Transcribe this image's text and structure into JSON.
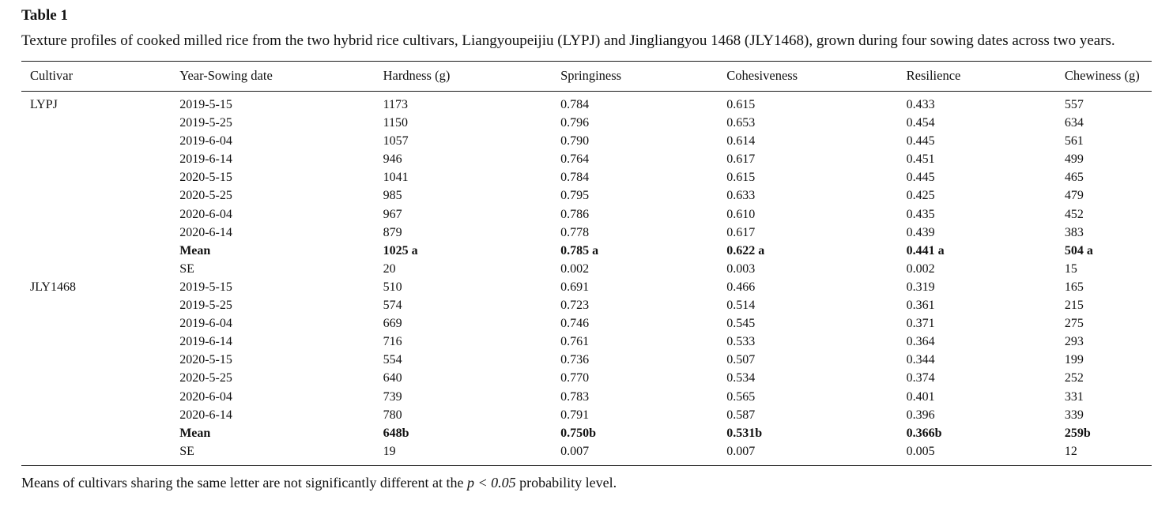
{
  "table": {
    "label": "Table 1",
    "caption": "Texture profiles of cooked milled rice from the two hybrid rice cultivars, Liangyoupeijiu (LYPJ) and Jingliangyou 1468 (JLY1468), grown during four sowing dates across two years.",
    "columns": [
      "Cultivar",
      "Year-Sowing date",
      "Hardness (g)",
      "Springiness",
      "Cohesiveness",
      "Resilience",
      "Chewiness (g)"
    ],
    "rows": [
      {
        "cells": [
          "LYPJ",
          "2019-5-15",
          "1173",
          "0.784",
          "0.615",
          "0.433",
          "557"
        ],
        "bold": false
      },
      {
        "cells": [
          "",
          "2019-5-25",
          "1150",
          "0.796",
          "0.653",
          "0.454",
          "634"
        ],
        "bold": false
      },
      {
        "cells": [
          "",
          "2019-6-04",
          "1057",
          "0.790",
          "0.614",
          "0.445",
          "561"
        ],
        "bold": false
      },
      {
        "cells": [
          "",
          "2019-6-14",
          "946",
          "0.764",
          "0.617",
          "0.451",
          "499"
        ],
        "bold": false
      },
      {
        "cells": [
          "",
          "2020-5-15",
          "1041",
          "0.784",
          "0.615",
          "0.445",
          "465"
        ],
        "bold": false
      },
      {
        "cells": [
          "",
          "2020-5-25",
          "985",
          "0.795",
          "0.633",
          "0.425",
          "479"
        ],
        "bold": false
      },
      {
        "cells": [
          "",
          "2020-6-04",
          "967",
          "0.786",
          "0.610",
          "0.435",
          "452"
        ],
        "bold": false
      },
      {
        "cells": [
          "",
          "2020-6-14",
          "879",
          "0.778",
          "0.617",
          "0.439",
          "383"
        ],
        "bold": false
      },
      {
        "cells": [
          "",
          "Mean",
          "1025 a",
          "0.785 a",
          "0.622 a",
          "0.441 a",
          "504 a"
        ],
        "bold": true
      },
      {
        "cells": [
          "",
          "SE",
          "20",
          "0.002",
          "0.003",
          "0.002",
          "15"
        ],
        "bold": false
      },
      {
        "cells": [
          "JLY1468",
          "2019-5-15",
          "510",
          "0.691",
          "0.466",
          "0.319",
          "165"
        ],
        "bold": false
      },
      {
        "cells": [
          "",
          "2019-5-25",
          "574",
          "0.723",
          "0.514",
          "0.361",
          "215"
        ],
        "bold": false
      },
      {
        "cells": [
          "",
          "2019-6-04",
          "669",
          "0.746",
          "0.545",
          "0.371",
          "275"
        ],
        "bold": false
      },
      {
        "cells": [
          "",
          "2019-6-14",
          "716",
          "0.761",
          "0.533",
          "0.364",
          "293"
        ],
        "bold": false
      },
      {
        "cells": [
          "",
          "2020-5-15",
          "554",
          "0.736",
          "0.507",
          "0.344",
          "199"
        ],
        "bold": false
      },
      {
        "cells": [
          "",
          "2020-5-25",
          "640",
          "0.770",
          "0.534",
          "0.374",
          "252"
        ],
        "bold": false
      },
      {
        "cells": [
          "",
          "2020-6-04",
          "739",
          "0.783",
          "0.565",
          "0.401",
          "331"
        ],
        "bold": false
      },
      {
        "cells": [
          "",
          "2020-6-14",
          "780",
          "0.791",
          "0.587",
          "0.396",
          "339"
        ],
        "bold": false
      },
      {
        "cells": [
          "",
          "Mean",
          "648b",
          "0.750b",
          "0.531b",
          "0.366b",
          "259b"
        ],
        "bold": true
      },
      {
        "cells": [
          "",
          "SE",
          "19",
          "0.007",
          "0.007",
          "0.005",
          "12"
        ],
        "bold": false
      }
    ],
    "footnote": {
      "pre": "Means of cultivars sharing the same letter are not significantly different at the ",
      "italic": "p < 0.05",
      "post": " probability level."
    }
  }
}
